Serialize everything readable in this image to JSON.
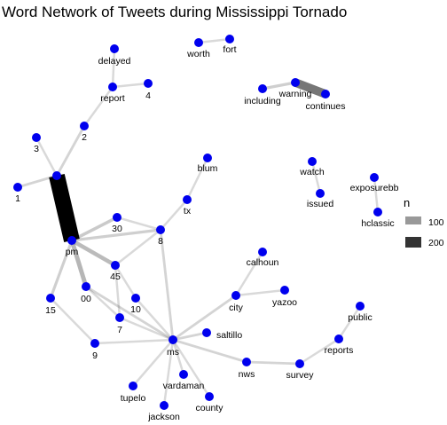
{
  "chart_data": {
    "type": "network",
    "title": "Word Network of Tweets during Mississippi Tornado",
    "node_color": "#0000ee",
    "edge_color": "#000000",
    "nodes": [
      "delayed",
      "worth",
      "fort",
      "4",
      "report",
      "including",
      "warning",
      "continues",
      "2",
      "3",
      "blum",
      "watch",
      "exposurebb",
      "1",
      "a",
      "tx",
      "issued",
      "hclassic",
      "30",
      "pm",
      "8",
      "calhoun",
      "45",
      "00",
      "yazoo",
      "city",
      "15",
      "10",
      "public",
      "7",
      "saltillo",
      "ms",
      "reports",
      "9",
      "nws",
      "survey",
      "vardaman",
      "tupelo",
      "county",
      "jackson"
    ],
    "edges": [
      {
        "source": "a",
        "target": "pm",
        "n": 250
      },
      {
        "source": "warning",
        "target": "continues",
        "n": 130
      },
      {
        "source": "pm",
        "target": "00",
        "n": 65
      },
      {
        "source": "pm",
        "target": "45",
        "n": 60
      },
      {
        "source": "pm",
        "target": "30",
        "n": 45
      },
      {
        "source": "warning",
        "target": "including",
        "n": 40
      },
      {
        "source": "pm",
        "target": "15",
        "n": 40
      },
      {
        "source": "pm",
        "target": "8",
        "n": 40
      },
      {
        "source": "00",
        "target": "ms",
        "n": 35
      },
      {
        "source": "a",
        "target": "2",
        "n": 35
      },
      {
        "source": "a",
        "target": "1",
        "n": 35
      },
      {
        "source": "a",
        "target": "3",
        "n": 30
      },
      {
        "source": "30",
        "target": "8",
        "n": 30
      },
      {
        "source": "45",
        "target": "8",
        "n": 30
      },
      {
        "source": "15",
        "target": "9",
        "n": 30
      },
      {
        "source": "9",
        "target": "ms",
        "n": 30
      },
      {
        "source": "45",
        "target": "7",
        "n": 30
      },
      {
        "source": "45",
        "target": "10",
        "n": 30
      },
      {
        "source": "00",
        "target": "7",
        "n": 30
      },
      {
        "source": "10",
        "target": "ms",
        "n": 30
      },
      {
        "source": "7",
        "target": "ms",
        "n": 30
      },
      {
        "source": "8",
        "target": "ms",
        "n": 35
      },
      {
        "source": "8",
        "target": "tx",
        "n": 30
      },
      {
        "source": "tx",
        "target": "blum",
        "n": 30
      },
      {
        "source": "2",
        "target": "report",
        "n": 30
      },
      {
        "source": "report",
        "target": "delayed",
        "n": 30
      },
      {
        "source": "report",
        "target": "4",
        "n": 30
      },
      {
        "source": "worth",
        "target": "fort",
        "n": 30
      },
      {
        "source": "watch",
        "target": "issued",
        "n": 30
      },
      {
        "source": "exposurebb",
        "target": "hclassic",
        "n": 30
      },
      {
        "source": "ms",
        "target": "city",
        "n": 35
      },
      {
        "source": "city",
        "target": "calhoun",
        "n": 30
      },
      {
        "source": "city",
        "target": "yazoo",
        "n": 30
      },
      {
        "source": "ms",
        "target": "saltillo",
        "n": 35
      },
      {
        "source": "ms",
        "target": "nws",
        "n": 35
      },
      {
        "source": "nws",
        "target": "survey",
        "n": 35
      },
      {
        "source": "survey",
        "target": "reports",
        "n": 30
      },
      {
        "source": "reports",
        "target": "public",
        "n": 30
      },
      {
        "source": "ms",
        "target": "tupelo",
        "n": 30
      },
      {
        "source": "ms",
        "target": "jackson",
        "n": 30
      },
      {
        "source": "ms",
        "target": "vardaman",
        "n": 30
      },
      {
        "source": "ms",
        "target": "county",
        "n": 30
      }
    ],
    "legend": {
      "title": "n",
      "placement": "right",
      "entries": [
        {
          "label": "100",
          "n": 100,
          "color": "#999999"
        },
        {
          "label": "200",
          "n": 200,
          "color": "#333333"
        }
      ]
    }
  }
}
